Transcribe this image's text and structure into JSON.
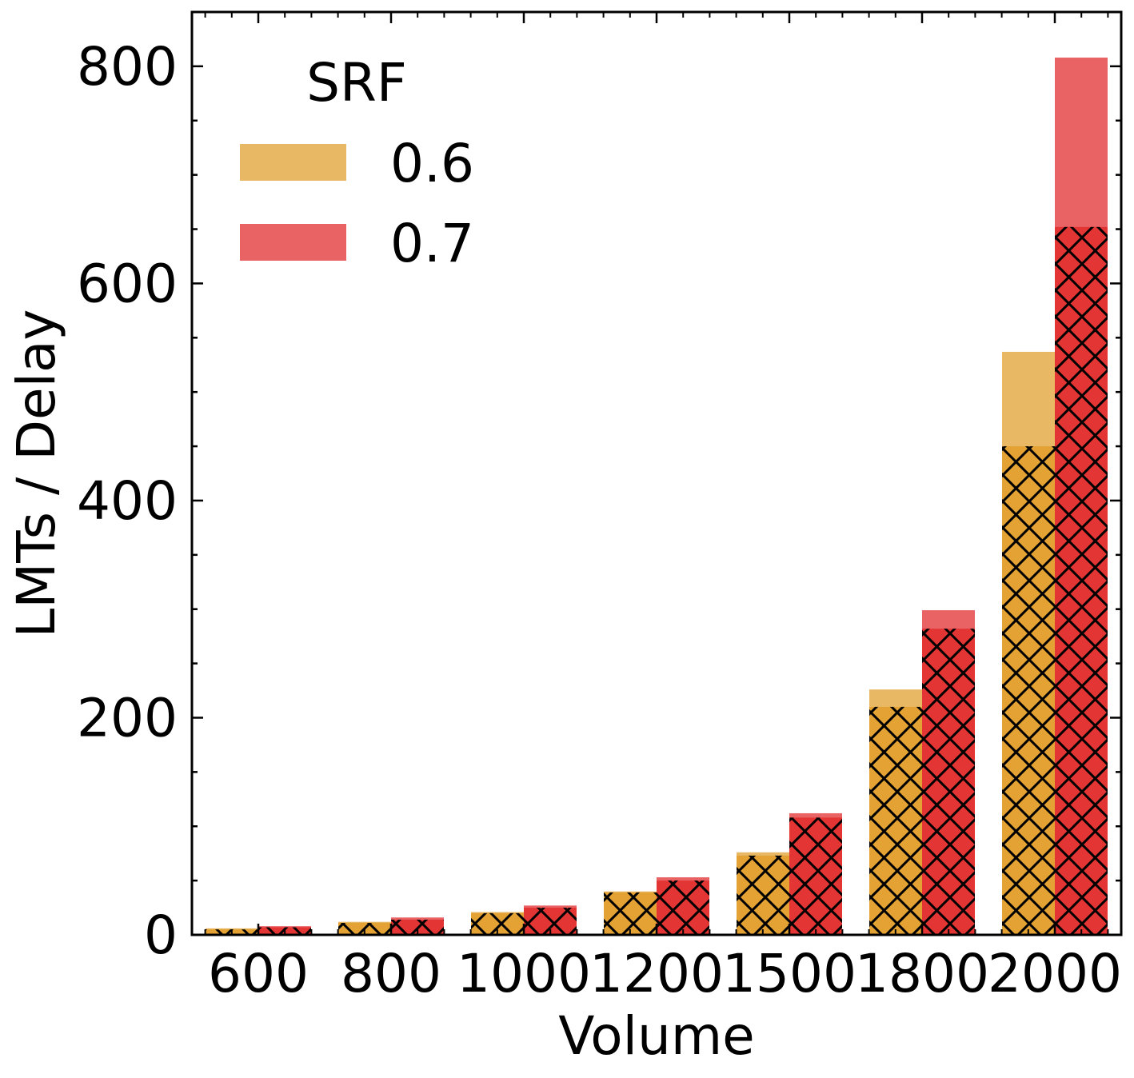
{
  "chart_data": {
    "type": "bar",
    "title": "",
    "xlabel": "Volume",
    "ylabel": "LMTs / Delay",
    "categories": [
      "600",
      "800",
      "1000",
      "1200",
      "1500",
      "1800",
      "2000"
    ],
    "ylim": [
      0,
      850
    ],
    "yticks": [
      0,
      200,
      400,
      600,
      800
    ],
    "legend": {
      "title": "SRF",
      "position": "top-left"
    },
    "series": [
      {
        "name": "0.6",
        "color": "#E8B865",
        "hatch_color": "#E3A233",
        "values": [
          6,
          12,
          21,
          40,
          76,
          226,
          537
        ],
        "hatched_values": [
          5,
          11,
          20,
          39,
          73,
          210,
          450
        ]
      },
      {
        "name": "0.7",
        "color": "#E96365",
        "hatch_color": "#E43535",
        "values": [
          8,
          16,
          27,
          53,
          112,
          299,
          808
        ],
        "hatched_values": [
          7,
          14,
          25,
          50,
          108,
          282,
          652
        ]
      }
    ],
    "hatch_pattern": "crosshatch"
  }
}
